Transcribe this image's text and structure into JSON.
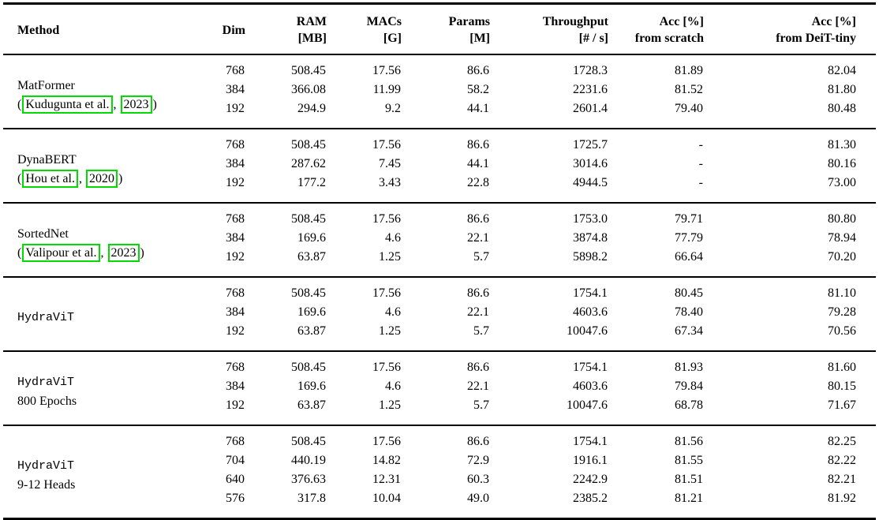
{
  "table": {
    "link_box_color": "#00db00",
    "columns": [
      {
        "id": "method",
        "lines": [
          "Method"
        ]
      },
      {
        "id": "dim",
        "lines": [
          "Dim"
        ]
      },
      {
        "id": "ram",
        "lines": [
          "RAM",
          "[MB]"
        ]
      },
      {
        "id": "macs",
        "lines": [
          "MACs",
          "[G]"
        ]
      },
      {
        "id": "params",
        "lines": [
          "Params",
          "[M]"
        ]
      },
      {
        "id": "throughput",
        "lines": [
          "Throughput",
          "[# / s]"
        ]
      },
      {
        "id": "acc_scratch",
        "lines": [
          "Acc [%]",
          "from scratch"
        ]
      },
      {
        "id": "acc_deit",
        "lines": [
          "Acc [%]",
          "from DeiT-tiny"
        ]
      }
    ],
    "groups": [
      {
        "method": {
          "name": "MatFormer",
          "mono": false,
          "citation": {
            "open": "(",
            "links": [
              "Kudugunta et al.",
              "2023"
            ],
            "separator": ",",
            "close": ")"
          }
        },
        "rows": [
          [
            "768",
            "508.45",
            "17.56",
            "86.6",
            "1728.3",
            "81.89",
            "82.04"
          ],
          [
            "384",
            "366.08",
            "11.99",
            "58.2",
            "2231.6",
            "81.52",
            "81.80"
          ],
          [
            "192",
            "294.9",
            "9.2",
            "44.1",
            "2601.4",
            "79.40",
            "80.48"
          ]
        ]
      },
      {
        "method": {
          "name": "DynaBERT",
          "mono": false,
          "citation": {
            "open": "(",
            "links": [
              "Hou et al.",
              "2020"
            ],
            "separator": ",",
            "close": ")"
          }
        },
        "rows": [
          [
            "768",
            "508.45",
            "17.56",
            "86.6",
            "1725.7",
            "-",
            "81.30"
          ],
          [
            "384",
            "287.62",
            "7.45",
            "44.1",
            "3014.6",
            "-",
            "80.16"
          ],
          [
            "192",
            "177.2",
            "3.43",
            "22.8",
            "4944.5",
            "-",
            "73.00"
          ]
        ]
      },
      {
        "method": {
          "name": "SortedNet",
          "mono": false,
          "citation": {
            "open": "(",
            "links": [
              "Valipour et al.",
              "2023"
            ],
            "separator": ",",
            "close": ")"
          }
        },
        "rows": [
          [
            "768",
            "508.45",
            "17.56",
            "86.6",
            "1753.0",
            "79.71",
            "80.80"
          ],
          [
            "384",
            "169.6",
            "4.6",
            "22.1",
            "3874.8",
            "77.79",
            "78.94"
          ],
          [
            "192",
            "63.87",
            "1.25",
            "5.7",
            "5898.2",
            "66.64",
            "70.20"
          ]
        ]
      },
      {
        "method": {
          "name": "HydraViT",
          "mono": true
        },
        "rows": [
          [
            "768",
            "508.45",
            "17.56",
            "86.6",
            "1754.1",
            "80.45",
            "81.10"
          ],
          [
            "384",
            "169.6",
            "4.6",
            "22.1",
            "4603.6",
            "78.40",
            "79.28"
          ],
          [
            "192",
            "63.87",
            "1.25",
            "5.7",
            "10047.6",
            "67.34",
            "70.56"
          ]
        ]
      },
      {
        "method": {
          "name": "HydraViT",
          "mono": true,
          "subtitle": "800 Epochs"
        },
        "rows": [
          [
            "768",
            "508.45",
            "17.56",
            "86.6",
            "1754.1",
            "81.93",
            "81.60"
          ],
          [
            "384",
            "169.6",
            "4.6",
            "22.1",
            "4603.6",
            "79.84",
            "80.15"
          ],
          [
            "192",
            "63.87",
            "1.25",
            "5.7",
            "10047.6",
            "68.78",
            "71.67"
          ]
        ]
      },
      {
        "method": {
          "name": "HydraViT",
          "mono": true,
          "subtitle": "9-12 Heads"
        },
        "rows": [
          [
            "768",
            "508.45",
            "17.56",
            "86.6",
            "1754.1",
            "81.56",
            "82.25"
          ],
          [
            "704",
            "440.19",
            "14.82",
            "72.9",
            "1916.1",
            "81.55",
            "82.22"
          ],
          [
            "640",
            "376.63",
            "12.31",
            "60.3",
            "2242.9",
            "81.51",
            "82.21"
          ],
          [
            "576",
            "317.8",
            "10.04",
            "49.0",
            "2385.2",
            "81.21",
            "81.92"
          ]
        ]
      }
    ]
  },
  "chart_data": {
    "type": "table",
    "title": "Comparison of methods: RAM, MACs, Params, Throughput and Accuracy per embedding dimension",
    "columns": [
      "Method",
      "Dim",
      "RAM [MB]",
      "MACs [G]",
      "Params [M]",
      "Throughput [# / s]",
      "Acc [%] from scratch",
      "Acc [%] from DeiT-tiny"
    ],
    "rows": [
      [
        "MatFormer (Kudugunta et al., 2023)",
        768,
        508.45,
        17.56,
        86.6,
        1728.3,
        81.89,
        82.04
      ],
      [
        "MatFormer (Kudugunta et al., 2023)",
        384,
        366.08,
        11.99,
        58.2,
        2231.6,
        81.52,
        81.8
      ],
      [
        "MatFormer (Kudugunta et al., 2023)",
        192,
        294.9,
        9.2,
        44.1,
        2601.4,
        79.4,
        80.48
      ],
      [
        "DynaBERT (Hou et al., 2020)",
        768,
        508.45,
        17.56,
        86.6,
        1725.7,
        null,
        81.3
      ],
      [
        "DynaBERT (Hou et al., 2020)",
        384,
        287.62,
        7.45,
        44.1,
        3014.6,
        null,
        80.16
      ],
      [
        "DynaBERT (Hou et al., 2020)",
        192,
        177.2,
        3.43,
        22.8,
        4944.5,
        null,
        73.0
      ],
      [
        "SortedNet (Valipour et al., 2023)",
        768,
        508.45,
        17.56,
        86.6,
        1753.0,
        79.71,
        80.8
      ],
      [
        "SortedNet (Valipour et al., 2023)",
        384,
        169.6,
        4.6,
        22.1,
        3874.8,
        77.79,
        78.94
      ],
      [
        "SortedNet (Valipour et al., 2023)",
        192,
        63.87,
        1.25,
        5.7,
        5898.2,
        66.64,
        70.2
      ],
      [
        "HydraViT",
        768,
        508.45,
        17.56,
        86.6,
        1754.1,
        80.45,
        81.1
      ],
      [
        "HydraViT",
        384,
        169.6,
        4.6,
        22.1,
        4603.6,
        78.4,
        79.28
      ],
      [
        "HydraViT",
        192,
        63.87,
        1.25,
        5.7,
        10047.6,
        67.34,
        70.56
      ],
      [
        "HydraViT 800 Epochs",
        768,
        508.45,
        17.56,
        86.6,
        1754.1,
        81.93,
        81.6
      ],
      [
        "HydraViT 800 Epochs",
        384,
        169.6,
        4.6,
        22.1,
        4603.6,
        79.84,
        80.15
      ],
      [
        "HydraViT 800 Epochs",
        192,
        63.87,
        1.25,
        5.7,
        10047.6,
        68.78,
        71.67
      ],
      [
        "HydraViT 9-12 Heads",
        768,
        508.45,
        17.56,
        86.6,
        1754.1,
        81.56,
        82.25
      ],
      [
        "HydraViT 9-12 Heads",
        704,
        440.19,
        14.82,
        72.9,
        1916.1,
        81.55,
        82.22
      ],
      [
        "HydraViT 9-12 Heads",
        640,
        376.63,
        12.31,
        60.3,
        2242.9,
        81.51,
        82.21
      ],
      [
        "HydraViT 9-12 Heads",
        576,
        317.8,
        10.04,
        49.0,
        2385.2,
        81.21,
        81.92
      ]
    ]
  }
}
